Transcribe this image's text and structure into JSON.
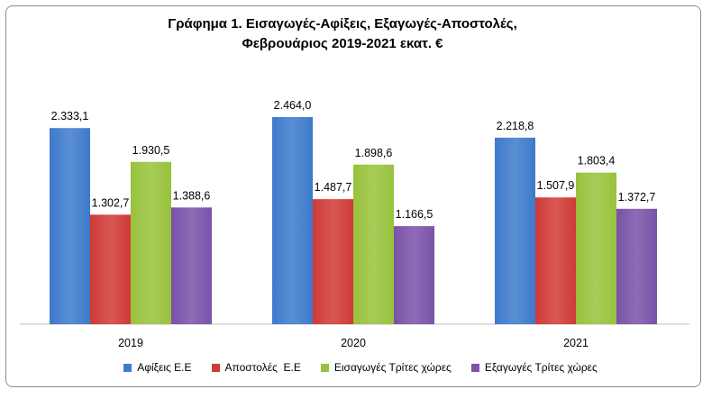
{
  "chart_data": {
    "type": "bar",
    "title_line1": "Γράφημα 1. Εισαγωγές-Αφίξεις, Εξαγωγές-Αποστολές,",
    "title_line2": "Φεβρουάριος 2019-2021 εκατ. €",
    "categories": [
      "2019",
      "2020",
      "2021"
    ],
    "series": [
      {
        "name": "Αφίξεις Ε.Ε",
        "color": "#3d7acc",
        "values": [
          2333.1,
          2464.0,
          2218.8
        ],
        "labels": [
          "2.333,1",
          "2.464,0",
          "2.218,8"
        ]
      },
      {
        "name": "Αποστολές  Ε.Ε",
        "color": "#cf3a36",
        "values": [
          1302.7,
          1487.7,
          1507.9
        ],
        "labels": [
          "1.302,7",
          "1.487,7",
          "1.507,9"
        ]
      },
      {
        "name": "Εισαγωγές Τρίτες χώρες",
        "color": "#98c23c",
        "values": [
          1930.5,
          1898.6,
          1803.4
        ],
        "labels": [
          "1.930,5",
          "1.898,6",
          "1.803,4"
        ]
      },
      {
        "name": "Εξαγωγές Τρίτες χώρες",
        "color": "#7a52a8",
        "values": [
          1388.6,
          1166.5,
          1372.7
        ],
        "labels": [
          "1.388,6",
          "1.166,5",
          "1.372,7"
        ]
      }
    ],
    "ylim": [
      0,
      2464.0
    ],
    "legend_position": "bottom",
    "grid": false
  }
}
